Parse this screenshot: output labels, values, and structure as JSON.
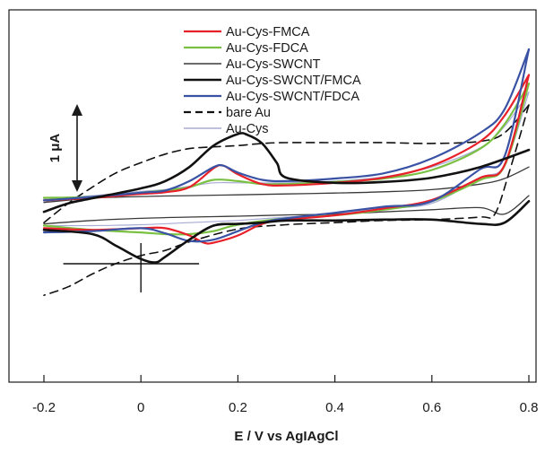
{
  "chart_data": {
    "type": "line",
    "title": "",
    "xlabel": "E / V vs AgIAgCl",
    "ylabel": "",
    "xlim": [
      -0.2,
      0.8
    ],
    "xticks": [
      -0.2,
      0,
      0.2,
      0.4,
      0.6,
      0.8
    ],
    "xtick_labels": [
      "-0.2",
      "0",
      "0.2",
      "0.4",
      "0.6",
      "0.8"
    ],
    "ylim": [
      -3.0,
      3.5
    ],
    "y_unit": "µA",
    "grid": false,
    "legend_position": "top-center",
    "scale_bar": {
      "label": "1 μA",
      "value": 1
    },
    "series": [
      {
        "name": "Au-Cys-FMCA",
        "color": "#e8202a",
        "dash": "solid",
        "width": 2.2,
        "anodic": [
          [
            -0.2,
            -0.03
          ],
          [
            -0.1,
            0.03
          ],
          [
            0,
            0.12
          ],
          [
            0.05,
            0.16
          ],
          [
            0.1,
            0.28
          ],
          [
            0.15,
            0.72
          ],
          [
            0.17,
            0.78
          ],
          [
            0.2,
            0.58
          ],
          [
            0.25,
            0.35
          ],
          [
            0.3,
            0.32
          ],
          [
            0.4,
            0.38
          ],
          [
            0.5,
            0.5
          ],
          [
            0.6,
            0.78
          ],
          [
            0.7,
            1.35
          ],
          [
            0.75,
            1.95
          ],
          [
            0.8,
            2.9
          ]
        ],
        "cathodic": [
          [
            0.8,
            2.9
          ],
          [
            0.75,
            0.8
          ],
          [
            0.7,
            0.5
          ],
          [
            0.6,
            -0.02
          ],
          [
            0.5,
            -0.22
          ],
          [
            0.4,
            -0.38
          ],
          [
            0.3,
            -0.48
          ],
          [
            0.25,
            -0.58
          ],
          [
            0.2,
            -0.85
          ],
          [
            0.15,
            -1.02
          ],
          [
            0.13,
            -1.02
          ],
          [
            0.1,
            -0.85
          ],
          [
            0.05,
            -0.68
          ],
          [
            0,
            -0.68
          ],
          [
            -0.1,
            -0.72
          ],
          [
            -0.2,
            -0.68
          ]
        ]
      },
      {
        "name": "Au-Cys-FDCA",
        "color": "#7ac143",
        "dash": "solid",
        "width": 2.2,
        "anodic": [
          [
            -0.2,
            0.03
          ],
          [
            -0.1,
            0.05
          ],
          [
            0,
            0.15
          ],
          [
            0.05,
            0.2
          ],
          [
            0.1,
            0.28
          ],
          [
            0.15,
            0.45
          ],
          [
            0.2,
            0.42
          ],
          [
            0.25,
            0.35
          ],
          [
            0.3,
            0.35
          ],
          [
            0.4,
            0.4
          ],
          [
            0.5,
            0.48
          ],
          [
            0.6,
            0.68
          ],
          [
            0.7,
            1.18
          ],
          [
            0.75,
            1.75
          ],
          [
            0.8,
            2.7
          ]
        ],
        "cathodic": [
          [
            0.8,
            2.7
          ],
          [
            0.75,
            0.78
          ],
          [
            0.7,
            0.45
          ],
          [
            0.6,
            -0.05
          ],
          [
            0.5,
            -0.25
          ],
          [
            0.4,
            -0.38
          ],
          [
            0.3,
            -0.45
          ],
          [
            0.2,
            -0.6
          ],
          [
            0.15,
            -0.75
          ],
          [
            0.1,
            -0.82
          ],
          [
            0.05,
            -0.82
          ],
          [
            0,
            -0.78
          ],
          [
            -0.1,
            -0.72
          ],
          [
            -0.2,
            -0.62
          ]
        ]
      },
      {
        "name": "Au-Cys-SWCNT",
        "color": "#3a3a3a",
        "dash": "solid",
        "width": 1.3,
        "anodic": [
          [
            -0.2,
            -0.08
          ],
          [
            -0.1,
            0.02
          ],
          [
            0,
            0.06
          ],
          [
            0.1,
            0.08
          ],
          [
            0.2,
            0.1
          ],
          [
            0.3,
            0.12
          ],
          [
            0.4,
            0.14
          ],
          [
            0.5,
            0.17
          ],
          [
            0.6,
            0.22
          ],
          [
            0.7,
            0.35
          ],
          [
            0.75,
            0.48
          ],
          [
            0.8,
            0.75
          ]
        ],
        "cathodic": [
          [
            0.8,
            0.08
          ],
          [
            0.75,
            -0.35
          ],
          [
            0.7,
            -0.2
          ],
          [
            0.6,
            -0.25
          ],
          [
            0.5,
            -0.3
          ],
          [
            0.4,
            -0.35
          ],
          [
            0.3,
            -0.37
          ],
          [
            0.2,
            -0.4
          ],
          [
            0.1,
            -0.42
          ],
          [
            0,
            -0.45
          ],
          [
            -0.1,
            -0.5
          ],
          [
            -0.2,
            -0.58
          ]
        ]
      },
      {
        "name": "Au-Cys-SWCNT/FMCA",
        "color": "#111111",
        "dash": "solid",
        "width": 2.6,
        "anodic": [
          [
            -0.2,
            -0.3
          ],
          [
            -0.15,
            -0.1
          ],
          [
            -0.1,
            0.02
          ],
          [
            0,
            0.25
          ],
          [
            0.05,
            0.42
          ],
          [
            0.1,
            0.75
          ],
          [
            0.15,
            1.25
          ],
          [
            0.2,
            1.52
          ],
          [
            0.22,
            1.5
          ],
          [
            0.25,
            1.3
          ],
          [
            0.28,
            0.85
          ],
          [
            0.3,
            0.5
          ],
          [
            0.4,
            0.38
          ],
          [
            0.5,
            0.4
          ],
          [
            0.6,
            0.5
          ],
          [
            0.7,
            0.75
          ],
          [
            0.8,
            1.15
          ]
        ],
        "cathodic": [
          [
            0.8,
            -0.05
          ],
          [
            0.75,
            -0.55
          ],
          [
            0.7,
            -0.58
          ],
          [
            0.6,
            -0.48
          ],
          [
            0.5,
            -0.48
          ],
          [
            0.4,
            -0.5
          ],
          [
            0.3,
            -0.5
          ],
          [
            0.25,
            -0.55
          ],
          [
            0.2,
            -0.58
          ],
          [
            0.15,
            -0.62
          ],
          [
            0.1,
            -0.95
          ],
          [
            0.05,
            -1.35
          ],
          [
            0.03,
            -1.48
          ],
          [
            0,
            -1.4
          ],
          [
            -0.05,
            -1.1
          ],
          [
            -0.1,
            -0.82
          ],
          [
            -0.2,
            -0.72
          ]
        ]
      },
      {
        "name": "Au-Cys-SWCNT/FDCA",
        "color": "#3a52a4",
        "dash": "solid",
        "width": 2.2,
        "anodic": [
          [
            -0.2,
            -0.03
          ],
          [
            -0.1,
            0.05
          ],
          [
            0,
            0.15
          ],
          [
            0.05,
            0.2
          ],
          [
            0.1,
            0.42
          ],
          [
            0.15,
            0.75
          ],
          [
            0.17,
            0.78
          ],
          [
            0.2,
            0.62
          ],
          [
            0.25,
            0.45
          ],
          [
            0.3,
            0.42
          ],
          [
            0.4,
            0.48
          ],
          [
            0.5,
            0.6
          ],
          [
            0.6,
            0.95
          ],
          [
            0.7,
            1.55
          ],
          [
            0.75,
            2.1
          ],
          [
            0.8,
            3.5
          ]
        ],
        "cathodic": [
          [
            0.8,
            3.5
          ],
          [
            0.75,
            1.0
          ],
          [
            0.7,
            0.7
          ],
          [
            0.6,
            -0.05
          ],
          [
            0.5,
            -0.18
          ],
          [
            0.4,
            -0.32
          ],
          [
            0.3,
            -0.45
          ],
          [
            0.25,
            -0.55
          ],
          [
            0.2,
            -0.75
          ],
          [
            0.15,
            -0.95
          ],
          [
            0.1,
            -0.98
          ],
          [
            0.05,
            -0.8
          ],
          [
            0,
            -0.68
          ],
          [
            -0.1,
            -0.75
          ],
          [
            -0.2,
            -0.78
          ]
        ]
      },
      {
        "name": "bare Au",
        "color": "#111111",
        "dash": "dashed",
        "width": 1.6,
        "anodic": [
          [
            -0.2,
            -0.55
          ],
          [
            -0.15,
            -0.1
          ],
          [
            -0.1,
            0.28
          ],
          [
            -0.05,
            0.62
          ],
          [
            0,
            0.85
          ],
          [
            0.05,
            1.05
          ],
          [
            0.1,
            1.18
          ],
          [
            0.15,
            1.22
          ],
          [
            0.2,
            1.25
          ],
          [
            0.25,
            1.3
          ],
          [
            0.3,
            1.32
          ],
          [
            0.4,
            1.32
          ],
          [
            0.5,
            1.32
          ],
          [
            0.6,
            1.3
          ],
          [
            0.7,
            1.35
          ],
          [
            0.75,
            1.55
          ],
          [
            0.8,
            2.2
          ]
        ],
        "cathodic": [
          [
            0.8,
            2.2
          ],
          [
            0.76,
            0.65
          ],
          [
            0.73,
            -0.35
          ],
          [
            0.7,
            -0.42
          ],
          [
            0.6,
            -0.48
          ],
          [
            0.5,
            -0.5
          ],
          [
            0.4,
            -0.55
          ],
          [
            0.3,
            -0.6
          ],
          [
            0.2,
            -0.7
          ],
          [
            0.1,
            -1.0
          ],
          [
            0.05,
            -1.2
          ],
          [
            0,
            -1.32
          ],
          [
            -0.05,
            -1.5
          ],
          [
            -0.1,
            -1.75
          ],
          [
            -0.15,
            -2.05
          ],
          [
            -0.2,
            -2.25
          ]
        ]
      },
      {
        "name": "Au-Cys",
        "color": "#a8acd4",
        "dash": "solid",
        "width": 1.2,
        "anodic": [
          [
            -0.2,
            0.0
          ],
          [
            -0.1,
            0.08
          ],
          [
            0,
            0.18
          ],
          [
            0.05,
            0.22
          ],
          [
            0.1,
            0.3
          ],
          [
            0.15,
            0.38
          ],
          [
            0.2,
            0.38
          ],
          [
            0.3,
            0.38
          ],
          [
            0.4,
            0.42
          ],
          [
            0.5,
            0.52
          ],
          [
            0.6,
            0.75
          ],
          [
            0.7,
            1.2
          ],
          [
            0.75,
            1.7
          ],
          [
            0.8,
            2.5
          ]
        ],
        "cathodic": [
          [
            0.8,
            2.5
          ],
          [
            0.75,
            0.8
          ],
          [
            0.7,
            0.5
          ],
          [
            0.6,
            -0.1
          ],
          [
            0.5,
            -0.22
          ],
          [
            0.4,
            -0.35
          ],
          [
            0.3,
            -0.42
          ],
          [
            0.2,
            -0.5
          ],
          [
            0.1,
            -0.55
          ],
          [
            0,
            -0.6
          ],
          [
            -0.1,
            -0.62
          ],
          [
            -0.2,
            -0.62
          ]
        ]
      }
    ]
  }
}
